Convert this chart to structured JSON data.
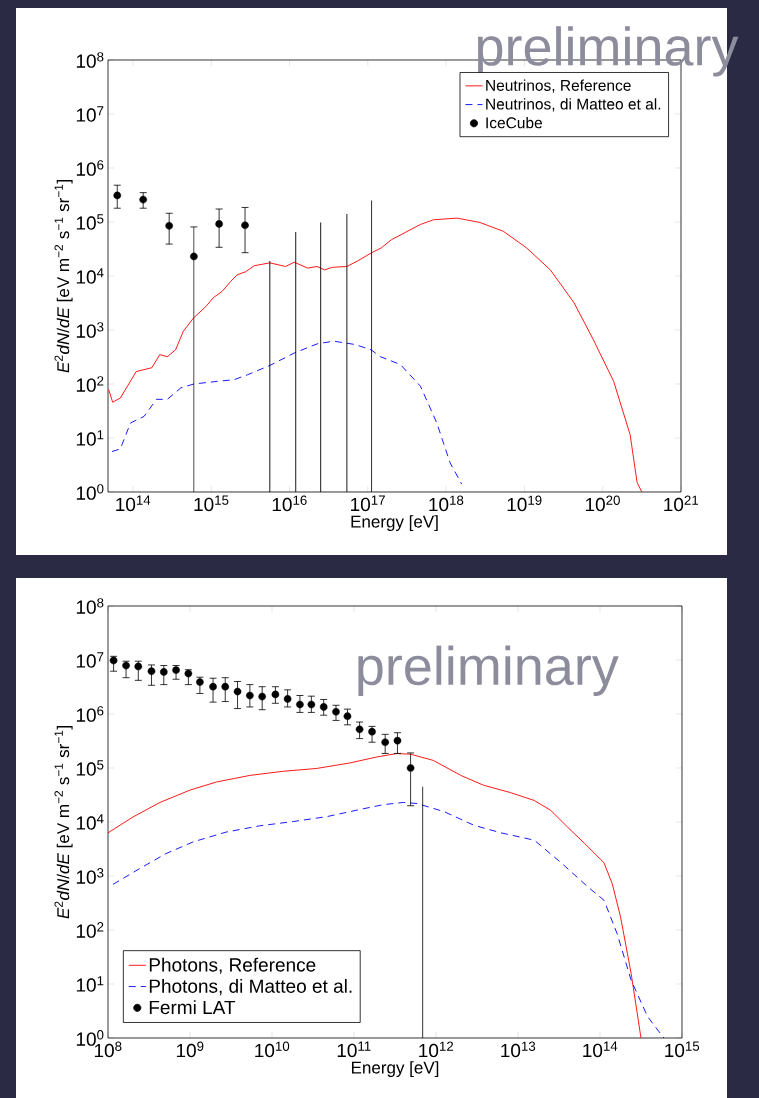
{
  "chart_data": [
    {
      "type": "line",
      "xlabel": "Energy [eV]",
      "ylabel": "*E*$^{2}$*dN*/*dE* [eV m$^{−2}$ s$^{−1}$ sr$^{−1}$]",
      "log": "xy",
      "legend": "top right",
      "xlim": [
        48000000000000.0,
        1e+21
      ],
      "ylim": [
        1,
        100000000.0
      ],
      "xticks": [
        {
          "value": 100000000000000.0,
          "label": "10$^{14}$"
        },
        {
          "value": 1000000000000000.0,
          "label": "10$^{15}$"
        },
        {
          "value": 1e+16,
          "label": "10$^{16}$"
        },
        {
          "value": 1e+17,
          "label": "10$^{17}$"
        },
        {
          "value": 1e+18,
          "label": "10$^{18}$"
        },
        {
          "value": 1e+19,
          "label": "10$^{19}$"
        },
        {
          "value": 1e+20,
          "label": "10$^{20}$"
        },
        {
          "value": 1e+21,
          "label": "10$^{21}$"
        }
      ],
      "yticks": [
        {
          "value": 1,
          "label": "10$^{0}$"
        },
        {
          "value": 10,
          "label": "10$^{1}$"
        },
        {
          "value": 100,
          "label": "10$^{2}$"
        },
        {
          "value": 1000,
          "label": "10$^{3}$"
        },
        {
          "value": 10000,
          "label": "10$^{4}$"
        },
        {
          "value": 100000,
          "label": "10$^{5}$"
        },
        {
          "value": 1000000,
          "label": "10$^{6}$"
        },
        {
          "value": 10000000,
          "label": "10$^{7}$"
        },
        {
          "value": 100000000,
          "label": "10$^{8}$"
        }
      ],
      "annotations": [
        "preliminary"
      ],
      "series": [
        {
          "name": "Neutrinos, Reference",
          "type": "line",
          "color": "#ff0000",
          "line_style": "solid",
          "x": [
            49000000000000.0,
            55000000000000.0,
            69000000000000.0,
            110000000000000.0,
            174000000000000.0,
            220000000000000.0,
            275000000000000.0,
            350000000000000.0,
            440000000000000.0,
            600000000000000.0,
            850000000000000.0,
            1070000000000000.0,
            1380000000000000.0,
            1780000000000000.0,
            2140000000000000.0,
            2750000000000000.0,
            3550000000000000.0,
            5600000000000000.0,
            8900000000000000.0,
            1.15e+16,
            1.7e+16,
            2.24e+16,
            2.8e+16,
            3.55e+16,
            5.4e+16,
            7.4e+16,
            1.12e+17,
            1.48e+17,
            2e+17,
            4.7e+17,
            6.9e+17,
            1.38e+18,
            2.7e+18,
            5.4e+18,
            1.07e+19,
            2.14e+19,
            4.3e+19,
            7.6e+19,
            1.38e+20,
            2.24e+20,
            2.75e+20,
            3.16e+20
          ],
          "values": [
            79,
            46,
            55,
            170,
            200,
            350,
            320,
            430,
            950,
            1700,
            2700,
            4000,
            5200,
            8000,
            10500,
            12000,
            15500,
            17500,
            15000,
            18000,
            14000,
            15000,
            13000,
            14500,
            15000,
            19000,
            27000,
            33000,
            47000,
            90000,
            110000,
            118000,
            98000,
            67000,
            33000,
            13000,
            3200,
            660,
            112,
            11.5,
            1.5,
            1
          ]
        },
        {
          "name": "Neutrinos, di Matteo et al.",
          "type": "line",
          "color": "#0000ff",
          "line_style": "dashed",
          "x": [
            54000000000000.0,
            69000000000000.0,
            93000000000000.0,
            138000000000000.0,
            200000000000000.0,
            275000000000000.0,
            410000000000000.0,
            600000000000000.0,
            1200000000000000.0,
            1950000000000000.0,
            2900000000000000.0,
            5600000000000000.0,
            1.15e+16,
            2.3e+16,
            3.7e+16,
            6.8e+16,
            1.1e+17,
            1.45e+17,
            2.6e+17,
            4.7e+17,
            7.6e+17,
            1.12e+18,
            1.58e+18
          ],
          "values": [
            5.6,
            6.3,
            19,
            25,
            52,
            52,
            85,
            100,
            112,
            120,
            148,
            220,
            375,
            560,
            620,
            540,
            430,
            320,
            230,
            91,
            19,
            3.5,
            1.4
          ]
        },
        {
          "name": "IceCube",
          "type": "scatter",
          "color": "#000000",
          "marker": "circle",
          "x": [
            63000000000000.0,
            135000000000000.0,
            290000000000000.0,
            600000000000000.0,
            1260000000000000.0,
            2700000000000000.0
          ],
          "values": [
            310000,
            260000,
            85000,
            23000,
            92000,
            87000
          ],
          "errors": [
            [
              180000,
              480000
            ],
            [
              180000,
              350000
            ],
            [
              39000,
              145000
            ],
            [
              1,
              81000
            ],
            [
              34000,
              174000
            ],
            [
              27000,
              186000
            ]
          ]
        },
        {
          "type": "bar",
          "color": "#000000",
          "x": [
            5600000000000000.0,
            1.2e+16,
            2.5e+16,
            5.4e+16,
            1.12e+17
          ],
          "values": [
            19000,
            65000,
            98000,
            140000,
            250000
          ]
        }
      ]
    },
    {
      "type": "line",
      "xlabel": "Energy [eV]",
      "ylabel": "*E*$^{2}$*dN*/*dE* [eV m$^{−2}$ s$^{−1}$ sr$^{−1}$]",
      "log": "xy",
      "legend": "bottom left",
      "xlim": [
        100000000.0,
        1000000000000000.0
      ],
      "ylim": [
        1,
        100000000.0
      ],
      "xticks": [
        {
          "value": 100000000.0,
          "label": "10$^{8}$"
        },
        {
          "value": 1000000000.0,
          "label": "10$^{9}$"
        },
        {
          "value": 10000000000.0,
          "label": "10$^{10}$"
        },
        {
          "value": 100000000000.0,
          "label": "10$^{11}$"
        },
        {
          "value": 1000000000000.0,
          "label": "10$^{12}$"
        },
        {
          "value": 10000000000000.0,
          "label": "10$^{13}$"
        },
        {
          "value": 100000000000000.0,
          "label": "10$^{14}$"
        },
        {
          "value": 1000000000000000.0,
          "label": "10$^{15}$"
        }
      ],
      "yticks": [
        {
          "value": 1,
          "label": "10$^{0}$"
        },
        {
          "value": 10,
          "label": "10$^{1}$"
        },
        {
          "value": 100,
          "label": "10$^{2}$"
        },
        {
          "value": 1000,
          "label": "10$^{3}$"
        },
        {
          "value": 10000,
          "label": "10$^{4}$"
        },
        {
          "value": 100000,
          "label": "10$^{5}$"
        },
        {
          "value": 1000000,
          "label": "10$^{6}$"
        },
        {
          "value": 10000000,
          "label": "10$^{7}$"
        },
        {
          "value": 100000000,
          "label": "10$^{8}$"
        }
      ],
      "annotations": [
        "preliminary"
      ],
      "series": [
        {
          "name": "Photons, Reference",
          "type": "line",
          "color": "#ff0000",
          "line_style": "solid",
          "x": [
            100000000.0,
            200000000.0,
            430000000.0,
            1000000000.0,
            2100000000.0,
            5400000000.0,
            13800000000.0,
            35000000000.0,
            89000000000.0,
            190000000000.0,
            330000000000.0,
            490000000000.0,
            930000000000.0,
            2000000000000.0,
            3800000000000.0,
            8100000000000.0,
            15800000000000.0,
            25000000000000.0,
            40000000000000.0,
            65000000000000.0,
            112000000000000.0,
            141000000000000.0,
            178000000000000.0,
            240000000000000.0,
            316000000000000.0
          ],
          "values": [
            6300,
            12300,
            23000,
            39000,
            55000,
            73000,
            87000,
            98000,
            124000,
            160000,
            185000,
            180000,
            138000,
            73000,
            48000,
            35000,
            25000,
            16500,
            8100,
            4000,
            1750,
            720,
            175,
            15.5,
            1
          ]
        },
        {
          "name": "Photons, di Matteo et al.",
          "type": "line",
          "color": "#0000ff",
          "line_style": "dashed",
          "x": [
            115000000.0,
            245000000.0,
            510000000.0,
            1100000000.0,
            2750000000.0,
            7100000000.0,
            18200000000.0,
            47000000000.0,
            117000000000.0,
            230000000000.0,
            400000000000.0,
            590000000000.0,
            1260000000000.0,
            2900000000000.0,
            6200000000000.0,
            15800000000000.0,
            33000000000000.0,
            71000000000000.0,
            112000000000000.0,
            162000000000000.0,
            240000000000000.0,
            380000000000000.0,
            600000000000000.0
          ],
          "values": [
            700,
            1380,
            2600,
            4300,
            6500,
            8500,
            10200,
            12600,
            17000,
            21000,
            23000,
            22000,
            15500,
            8700,
            6300,
            4600,
            1800,
            630,
            355,
            85,
            11.7,
            2.5,
            1
          ]
        },
        {
          "name": "Fermi LAT",
          "type": "scatter",
          "color": "#000000",
          "marker": "circle",
          "x": [
            117000000.0,
            166000000.0,
            234000000.0,
            339000000.0,
            479000000.0,
            676000000.0,
            955000000.0,
            1320000000.0,
            1910000000.0,
            2690000000.0,
            3800000000.0,
            5370000000.0,
            7590000000.0,
            11000000000.0,
            15500000000.0,
            21900000000.0,
            30200000000.0,
            42700000000.0,
            60300000000.0,
            83200000000.0,
            117000000000.0,
            166000000000.0,
            240000000000.0,
            339000000000.0,
            490000000000.0
          ],
          "values": [
            9800000,
            7900000,
            7600000,
            6200000,
            6000000,
            6500000,
            5600000,
            3900000,
            3200000,
            3200000,
            2600000,
            2200000,
            2100000,
            2300000,
            1900000,
            1500000,
            1500000,
            1350000,
            1100000,
            910000,
            520000,
            470000,
            300000,
            320000,
            100000
          ],
          "errors": [
            [
              6200000,
              11700000
            ],
            [
              4700000,
              9500000
            ],
            [
              4200000,
              9500000
            ],
            [
              3400000,
              8100000
            ],
            [
              3500000,
              7900000
            ],
            [
              4400000,
              7900000
            ],
            [
              3500000,
              6600000
            ],
            [
              2400000,
              4800000
            ],
            [
              1660000,
              4600000
            ],
            [
              1700000,
              4700000
            ],
            [
              1260000,
              4000000
            ],
            [
              1350000,
              3500000
            ],
            [
              1200000,
              3200000
            ],
            [
              1580000,
              3200000
            ],
            [
              1350000,
              2800000
            ],
            [
              1070000,
              2200000
            ],
            [
              1070000,
              2140000
            ],
            [
              950000,
              1860000
            ],
            [
              760000,
              1450000
            ],
            [
              630000,
              1230000
            ],
            [
              350000,
              710000
            ],
            [
              300000,
              590000
            ],
            [
              186000,
              420000
            ],
            [
              186000,
              450000
            ],
            [
              20000,
              190000
            ]
          ]
        },
        {
          "type": "bar",
          "color": "#000000",
          "x": [
            690000000000.0
          ],
          "values": [
            45000
          ]
        }
      ]
    }
  ]
}
